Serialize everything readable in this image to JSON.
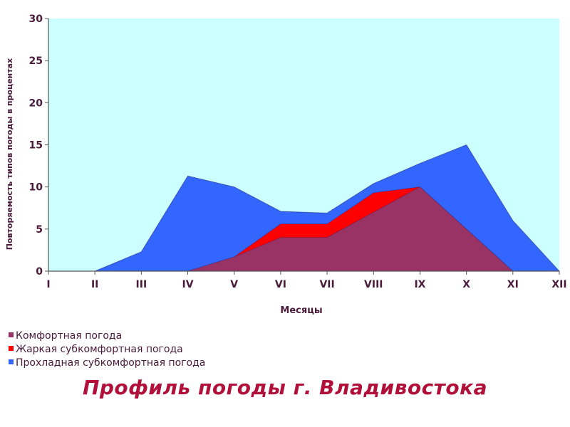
{
  "caption": "Профиль погоды г. Владивостока",
  "colors": {
    "plot_background": "#ccffff",
    "comfort": "#993366",
    "hot": "#ff0000",
    "cool": "#3366ff",
    "text": "#4a1a3a",
    "caption": "#b0103a"
  },
  "chart_data": {
    "type": "area",
    "title": "",
    "xlabel": "Месяцы",
    "ylabel": "Повторяемость типов погоды в процентах",
    "categories": [
      "I",
      "II",
      "III",
      "IV",
      "V",
      "VI",
      "VII",
      "VIII",
      "IX",
      "X",
      "XI",
      "XII"
    ],
    "ylim": [
      0,
      30
    ],
    "yticks": [
      0,
      5,
      10,
      15,
      20,
      25,
      30
    ],
    "stacked": false,
    "grid": false,
    "legend_position": "bottom-left",
    "series": [
      {
        "name": "Прохладная субкомфортная погода",
        "color": "#3366ff",
        "values": [
          0,
          0,
          2.3,
          11.3,
          10,
          7.1,
          6.9,
          10.4,
          12.8,
          15,
          6,
          0
        ]
      },
      {
        "name": "Жаркая субкомфортная погода",
        "color": "#ff0000",
        "values": [
          0,
          0,
          0,
          0,
          1.7,
          5.6,
          5.6,
          9.3,
          10,
          5,
          0,
          0
        ]
      },
      {
        "name": "Комфортная погода",
        "color": "#993366",
        "values": [
          0,
          0,
          0,
          0,
          1.7,
          4,
          4,
          7,
          10,
          5,
          0,
          0
        ]
      }
    ],
    "legend": [
      {
        "name": "Комфортная погода",
        "color": "#993366"
      },
      {
        "name": "Жаркая субкомфортная погода",
        "color": "#ff0000"
      },
      {
        "name": "Прохладная субкомфортная погода",
        "color": "#3366ff"
      }
    ]
  }
}
